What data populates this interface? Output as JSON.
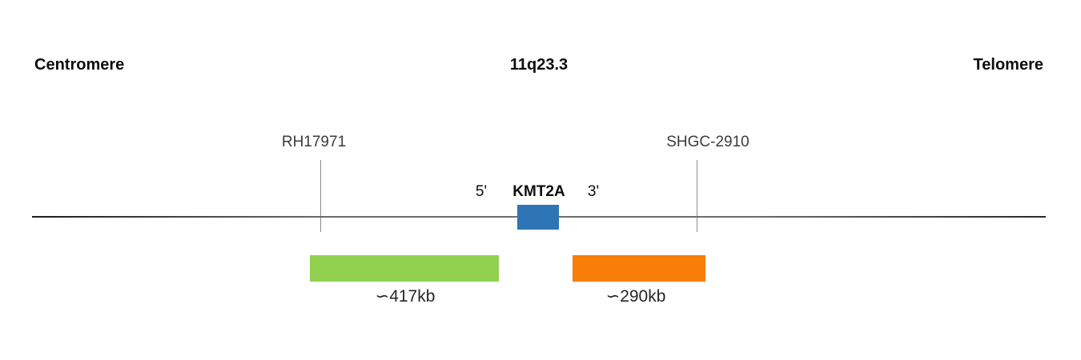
{
  "colors": {
    "gene_box": "#2e75b6",
    "left_span_bar": "#92d050",
    "right_span_bar": "#f87d09",
    "marker_line": "#8c8c8c",
    "title_text": "#0d0d0d",
    "label_text": "#3b3b3b",
    "kb_text": "#262626"
  },
  "header": {
    "left_label": "Centromere",
    "center_label": "11q23.3",
    "right_label": "Telomere"
  },
  "markers": [
    {
      "name": "RH17971"
    },
    {
      "name": "SHGC-2910"
    }
  ],
  "gene": {
    "name": "KMT2A",
    "five_prime": "5'",
    "three_prime": "3'"
  },
  "spans": [
    {
      "label": "∽417kb",
      "color": "#92d050"
    },
    {
      "label": "∽290kb",
      "color": "#f87d09"
    }
  ]
}
